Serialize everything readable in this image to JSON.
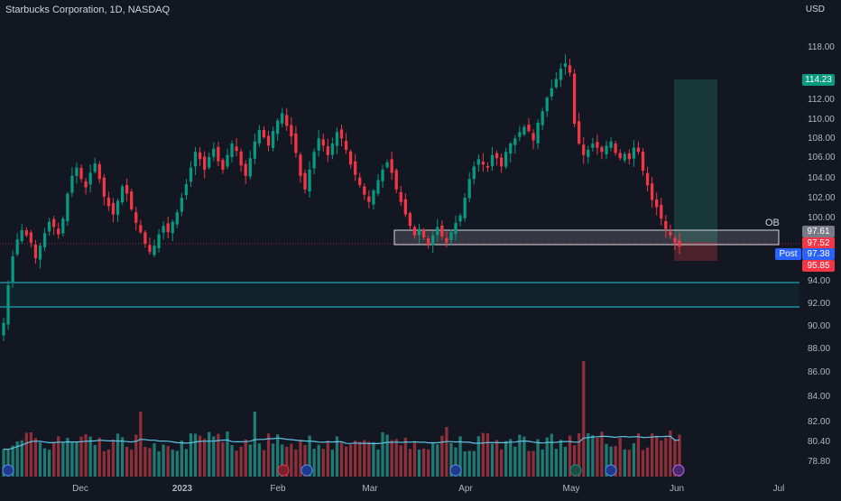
{
  "header": {
    "title": "Starbucks Corporation, 1D, NASDAQ",
    "currency": "USD"
  },
  "annotations": {
    "ob_label": "OB",
    "post_label": "Post"
  },
  "price_tags": [
    {
      "text": "114.23",
      "price": 114.23,
      "color": "#089981"
    },
    {
      "text": "97.61",
      "price": 97.61,
      "color": "#787b86"
    },
    {
      "text": "97.52",
      "price": 97.52,
      "color": "#f23645"
    },
    {
      "text": "97.38",
      "price": 97.38,
      "color": "#2962ff"
    },
    {
      "text": "95.85",
      "price": 95.85,
      "color": "#f23645"
    }
  ],
  "colors": {
    "background": "#131722",
    "up": "#089981",
    "down": "#f23645",
    "volume_up": "#1f7a73",
    "volume_down": "#8e2f3a",
    "volume_ma": "#5fc3e4",
    "zone_line": "#26c6da",
    "text": "#d1d4dc",
    "axis_text": "#b2b5be"
  },
  "chart_data": {
    "type": "candlestick",
    "title": "Starbucks Corporation, 1D, NASDAQ",
    "y_axis_ticks": [
      "118.00",
      "112.00",
      "110.00",
      "108.00",
      "106.00",
      "104.00",
      "102.00",
      "100.00",
      "94.00",
      "92.00",
      "90.00",
      "88.00",
      "86.00",
      "84.00",
      "82.00",
      "80.40",
      "78.80"
    ],
    "price_ticks": [
      118,
      112,
      110,
      108,
      106,
      104,
      102,
      100,
      94,
      92,
      90
    ],
    "x_axis_labels": [
      "Dec",
      "2023",
      "Feb",
      "Mar",
      "Apr",
      "May",
      "Jun",
      "Jul"
    ],
    "price_range": [
      88.5,
      119.5
    ],
    "closes": [
      90.2,
      93.8,
      96.6,
      98.2,
      99.1,
      98.6,
      97.9,
      96.4,
      97.6,
      98.8,
      99.9,
      99.4,
      98.7,
      100.2,
      102.6,
      104.3,
      105.1,
      104.0,
      103.2,
      104.6,
      105.5,
      104.0,
      102.3,
      101.4,
      100.6,
      101.9,
      103.3,
      102.6,
      101.1,
      99.8,
      98.9,
      97.8,
      97.0,
      97.6,
      98.7,
      99.5,
      98.9,
      99.9,
      100.8,
      102.2,
      103.5,
      105.1,
      106.6,
      105.9,
      104.9,
      106.1,
      106.9,
      105.7,
      104.9,
      106.3,
      107.4,
      106.7,
      105.3,
      104.3,
      106.0,
      107.6,
      108.7,
      108.0,
      107.2,
      108.6,
      109.6,
      110.3,
      109.1,
      108.1,
      106.5,
      104.3,
      103.0,
      104.9,
      106.6,
      107.9,
      107.2,
      106.3,
      107.4,
      108.5,
      107.9,
      106.8,
      105.4,
      104.4,
      103.4,
      102.5,
      101.8,
      102.9,
      103.9,
      104.9,
      105.6,
      104.6,
      103.0,
      101.8,
      100.6,
      99.5,
      98.6,
      99.2,
      98.4,
      97.7,
      98.6,
      99.4,
      98.5,
      97.9,
      98.9,
      99.8,
      100.5,
      102.2,
      104.0,
      105.2,
      105.9,
      105.4,
      105.1,
      106.3,
      106.0,
      105.2,
      106.6,
      107.4,
      107.9,
      108.5,
      109.0,
      108.6,
      107.7,
      109.4,
      110.5,
      111.8,
      112.7,
      113.6,
      114.6,
      115.1,
      114.2,
      109.3,
      107.4,
      106.3,
      106.8,
      107.4,
      107.0,
      106.6,
      107.2,
      107.6,
      106.5,
      106.0,
      106.4,
      105.9,
      107.0,
      106.6,
      104.8,
      103.4,
      102.0,
      101.3,
      100.2,
      99.2,
      98.6,
      97.9,
      97.52
    ]
  }
}
